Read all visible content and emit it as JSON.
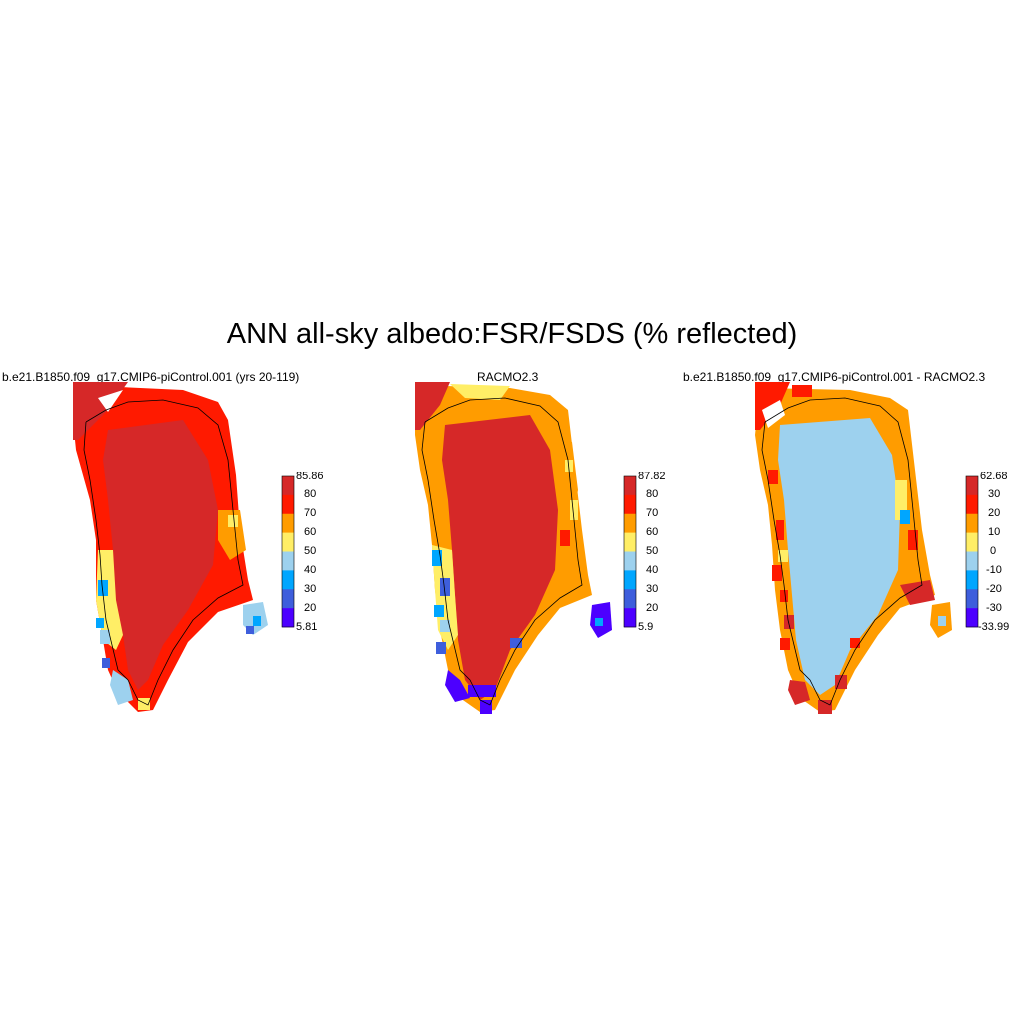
{
  "title": "ANN all-sky albedo:FSR/FSDS (% reflected)",
  "palette_main": [
    "#4c00ff",
    "#3e5edc",
    "#00a6ff",
    "#9dd1ee",
    "#ffee66",
    "#ff9c00",
    "#ff1a00",
    "#d62828"
  ],
  "palette_diff": [
    "#4c00ff",
    "#3e5edc",
    "#00a6ff",
    "#9dd1ee",
    "#ffee66",
    "#ff9c00",
    "#ff1a00",
    "#d62828"
  ],
  "panels": [
    {
      "title": "b.e21.B1850.f09_g17.CMIP6-piControl.001 (yrs 20-119)",
      "colorbar_labels": [
        "85.86",
        "80",
        "70",
        "60",
        "50",
        "40",
        "30",
        "20",
        "5.81"
      ]
    },
    {
      "title": "RACMO2.3",
      "colorbar_labels": [
        "87.82",
        "80",
        "70",
        "60",
        "50",
        "40",
        "30",
        "20",
        "5.9"
      ]
    },
    {
      "title": "b.e21.B1850.f09_g17.CMIP6-piControl.001 - RACMO2.3",
      "colorbar_labels": [
        "62.68",
        "30",
        "20",
        "10",
        "0",
        "-10",
        "-20",
        "-30",
        "-33.99"
      ]
    }
  ]
}
